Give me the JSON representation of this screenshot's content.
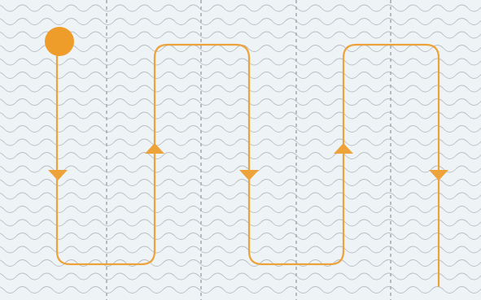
{
  "colors": {
    "background": "#EEF3F6",
    "wave": "#B9BEC4",
    "divider": "#A9ADB2",
    "path": "#EDA23A",
    "start_marker": "#EE9C2A"
  },
  "diagram": {
    "description_visible_text": "",
    "pattern": "wavy-lines",
    "dividers": "dashed-vertical",
    "path_style": "serpentine-route",
    "start_marker_icon": "circle",
    "direction_icons": [
      "arrow-down",
      "arrow-up",
      "arrow-down",
      "arrow-up",
      "arrow-down"
    ]
  }
}
